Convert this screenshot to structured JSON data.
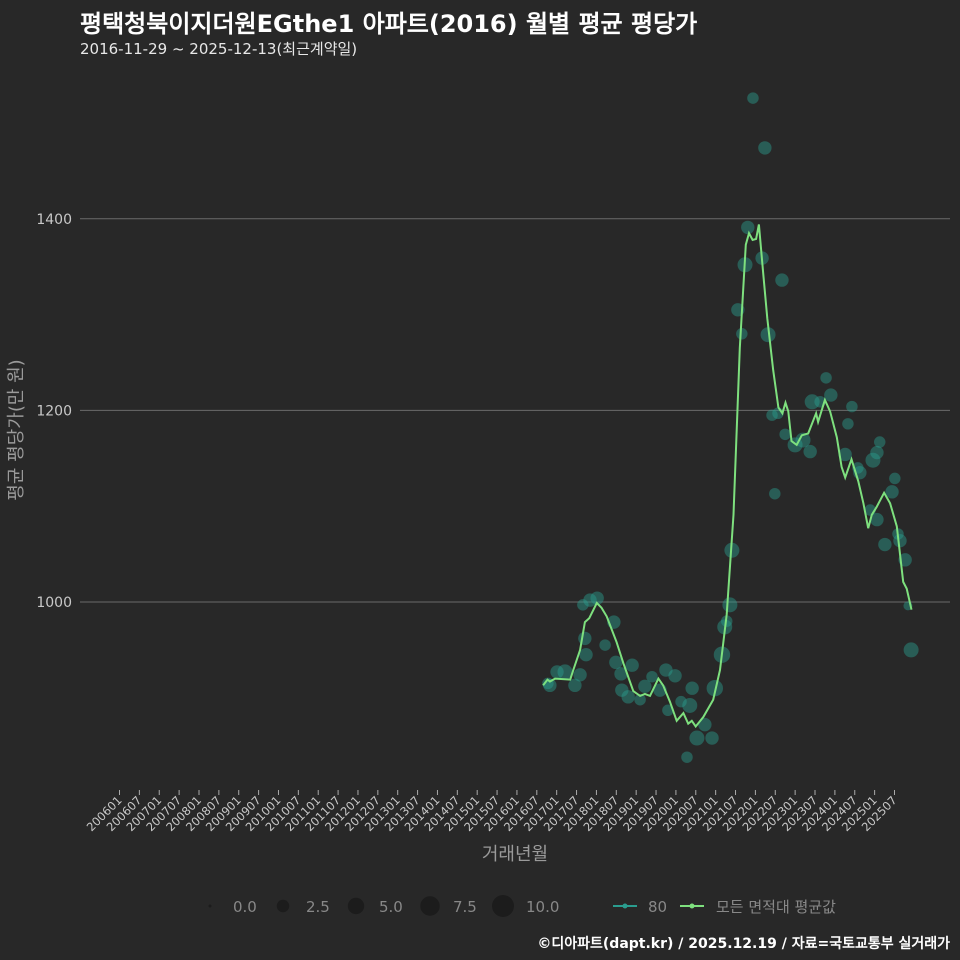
{
  "title": "평택청북이지더원EGthe1 아파트(2016) 월별 평균 평당가",
  "subtitle": "2016-11-29 ~ 2025-12-13(최근계약일)",
  "footer": "©디아파트(dapt.kr) / 2025.12.19 / 자료=국토교통부 실거래가",
  "colors": {
    "background": "#282828",
    "grid": "#6a6a6a",
    "bubble": "#2a9d8f",
    "line": "#7ee07e"
  },
  "chart_data": {
    "type": "scatter+line",
    "xlabel": "거래년월",
    "ylabel": "평균 평당가(만 원)",
    "xlim": [
      2005.6,
      2026.4
    ],
    "ylim": [
      800,
      1560
    ],
    "grid": true,
    "y_ticks": [
      1000,
      1200,
      1400
    ],
    "x_ticks": [
      "200601",
      "200607",
      "200701",
      "200707",
      "200801",
      "200807",
      "200901",
      "200907",
      "201001",
      "201007",
      "201101",
      "201107",
      "201201",
      "201207",
      "201301",
      "201307",
      "201401",
      "201407",
      "201501",
      "201507",
      "201601",
      "201607",
      "201701",
      "201707",
      "201801",
      "201807",
      "201901",
      "201907",
      "202001",
      "202007",
      "202101",
      "202107",
      "202201",
      "202207",
      "202301",
      "202307",
      "202401",
      "202407",
      "202501",
      "202507"
    ],
    "legend": {
      "placement": "bottom",
      "sizes": [
        "0.0",
        "2.5",
        "5.0",
        "7.5",
        "10.0"
      ],
      "series": [
        "80",
        "모든 면적대 평균값"
      ]
    },
    "bubbles_80": [
      [
        2016.83,
        913,
        3
      ],
      [
        2017.01,
        927,
        3
      ],
      [
        2017.21,
        927,
        4
      ],
      [
        2017.46,
        913,
        3
      ],
      [
        2016.78,
        915,
        2
      ],
      [
        2017.59,
        924,
        3
      ],
      [
        2017.66,
        997,
        2
      ],
      [
        2017.84,
        1002,
        3
      ],
      [
        2018.02,
        1004,
        3
      ],
      [
        2017.74,
        945,
        3
      ],
      [
        2017.71,
        962,
        3
      ],
      [
        2018.44,
        979,
        3
      ],
      [
        2018.22,
        955,
        2
      ],
      [
        2018.49,
        937,
        3
      ],
      [
        2018.62,
        925,
        3
      ],
      [
        2018.9,
        934,
        3
      ],
      [
        2018.64,
        908,
        3
      ],
      [
        2018.8,
        901,
        3
      ],
      [
        2019.1,
        898,
        2
      ],
      [
        2019.22,
        912,
        3
      ],
      [
        2019.4,
        922,
        2
      ],
      [
        2019.6,
        908,
        3
      ],
      [
        2019.75,
        929,
        3
      ],
      [
        2019.8,
        887,
        2
      ],
      [
        2020.13,
        896,
        2
      ],
      [
        2020.35,
        892,
        4
      ],
      [
        2020.41,
        910,
        3
      ],
      [
        2019.98,
        923,
        3
      ],
      [
        2020.73,
        872,
        3
      ],
      [
        2020.91,
        858,
        3
      ],
      [
        2020.28,
        838,
        2
      ],
      [
        2020.53,
        858,
        4
      ],
      [
        2020.98,
        910,
        5
      ],
      [
        2021.16,
        945,
        5
      ],
      [
        2021.28,
        980,
        2
      ],
      [
        2021.36,
        997,
        4
      ],
      [
        2021.23,
        974,
        4
      ],
      [
        2021.41,
        1054,
        4
      ],
      [
        2021.56,
        1305,
        3
      ],
      [
        2021.66,
        1280,
        2
      ],
      [
        2021.74,
        1352,
        4
      ],
      [
        2021.81,
        1391,
        3
      ],
      [
        2021.94,
        1526,
        2
      ],
      [
        2022.17,
        1359,
        3
      ],
      [
        2022.24,
        1474,
        3
      ],
      [
        2022.32,
        1279,
        4
      ],
      [
        2022.67,
        1336,
        3
      ],
      [
        2022.49,
        1113,
        2
      ],
      [
        2022.42,
        1195,
        2
      ],
      [
        2022.57,
        1197,
        2
      ],
      [
        2022.75,
        1175,
        2
      ],
      [
        2023.0,
        1164,
        4
      ],
      [
        2023.2,
        1169,
        4
      ],
      [
        2023.38,
        1157,
        3
      ],
      [
        2023.43,
        1209,
        4
      ],
      [
        2023.63,
        1209,
        2
      ],
      [
        2023.78,
        1234,
        2
      ],
      [
        2023.9,
        1216,
        3
      ],
      [
        2024.26,
        1154,
        3
      ],
      [
        2024.33,
        1186,
        2
      ],
      [
        2024.43,
        1204,
        2
      ],
      [
        2024.58,
        1140,
        2
      ],
      [
        2024.63,
        1135,
        3
      ],
      [
        2025.06,
        1156,
        3
      ],
      [
        2024.96,
        1148,
        4
      ],
      [
        2025.13,
        1167,
        2
      ],
      [
        2025.51,
        1129,
        2
      ],
      [
        2025.59,
        1071,
        2
      ],
      [
        2025.64,
        1064,
        3
      ],
      [
        2025.44,
        1115,
        3
      ],
      [
        2025.26,
        1060,
        3
      ],
      [
        2025.06,
        1086,
        3
      ],
      [
        2024.89,
        1096,
        2
      ],
      [
        2025.77,
        1044,
        3
      ],
      [
        2025.92,
        950,
        4
      ],
      [
        2025.84,
        996,
        1
      ]
    ],
    "line_all": [
      [
        2016.66,
        913
      ],
      [
        2016.77,
        919
      ],
      [
        2016.83,
        917
      ],
      [
        2016.96,
        920
      ],
      [
        2017.34,
        919
      ],
      [
        2017.42,
        929
      ],
      [
        2017.59,
        950
      ],
      [
        2017.71,
        979
      ],
      [
        2017.82,
        983
      ],
      [
        2018.01,
        999
      ],
      [
        2018.13,
        994
      ],
      [
        2018.26,
        985
      ],
      [
        2018.51,
        958
      ],
      [
        2018.68,
        936
      ],
      [
        2018.93,
        907
      ],
      [
        2019.1,
        902
      ],
      [
        2019.22,
        904
      ],
      [
        2019.35,
        902
      ],
      [
        2019.56,
        920
      ],
      [
        2019.68,
        913
      ],
      [
        2019.85,
        896
      ],
      [
        2020.02,
        876
      ],
      [
        2020.19,
        884
      ],
      [
        2020.31,
        873
      ],
      [
        2020.4,
        876
      ],
      [
        2020.5,
        870
      ],
      [
        2020.69,
        880
      ],
      [
        2020.94,
        898
      ],
      [
        2021.11,
        929
      ],
      [
        2021.28,
        987
      ],
      [
        2021.45,
        1091
      ],
      [
        2021.61,
        1265
      ],
      [
        2021.76,
        1373
      ],
      [
        2021.84,
        1385
      ],
      [
        2021.93,
        1378
      ],
      [
        2022.02,
        1379
      ],
      [
        2022.09,
        1394
      ],
      [
        2022.2,
        1342
      ],
      [
        2022.3,
        1296
      ],
      [
        2022.45,
        1242
      ],
      [
        2022.58,
        1203
      ],
      [
        2022.68,
        1197
      ],
      [
        2022.76,
        1208
      ],
      [
        2022.83,
        1199
      ],
      [
        2022.91,
        1168
      ],
      [
        2023.04,
        1164
      ],
      [
        2023.17,
        1174
      ],
      [
        2023.33,
        1176
      ],
      [
        2023.53,
        1197
      ],
      [
        2023.58,
        1188
      ],
      [
        2023.75,
        1211
      ],
      [
        2023.88,
        1199
      ],
      [
        2024.05,
        1172
      ],
      [
        2024.17,
        1141
      ],
      [
        2024.26,
        1130
      ],
      [
        2024.42,
        1149
      ],
      [
        2024.59,
        1126
      ],
      [
        2024.72,
        1103
      ],
      [
        2024.84,
        1077
      ],
      [
        2024.93,
        1091
      ],
      [
        2025.05,
        1099
      ],
      [
        2025.24,
        1114
      ],
      [
        2025.39,
        1103
      ],
      [
        2025.56,
        1079
      ],
      [
        2025.72,
        1021
      ],
      [
        2025.81,
        1014
      ],
      [
        2025.93,
        992
      ]
    ]
  }
}
